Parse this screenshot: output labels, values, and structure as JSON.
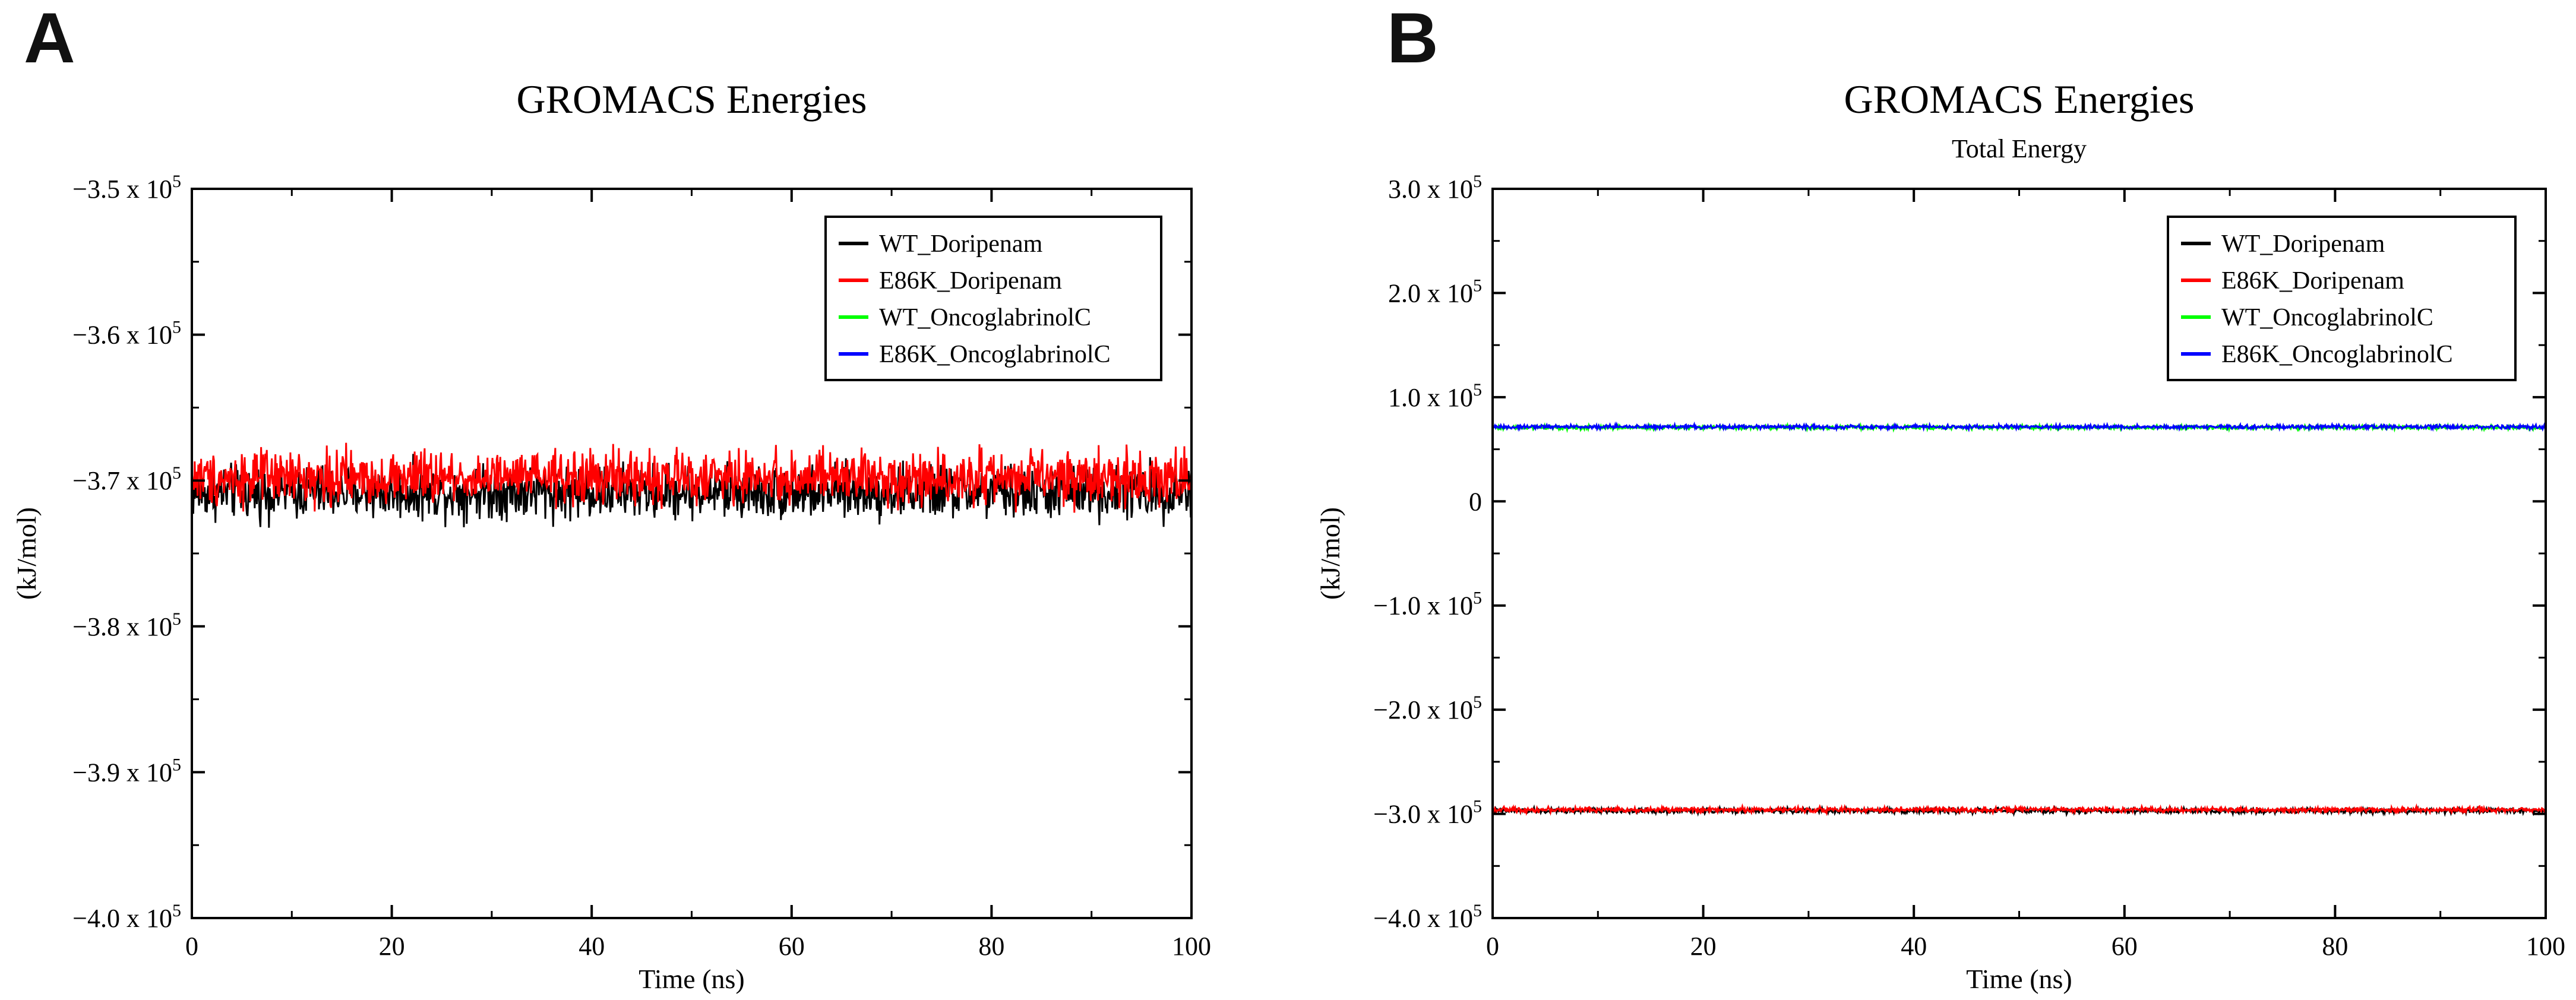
{
  "chart_data": [
    {
      "panel_letter": "A",
      "type": "line",
      "title": "GROMACS Energies",
      "subtitle": "",
      "xlabel": "Time (ns)",
      "ylabel": "(kJ/mol)",
      "xlim": [
        0,
        100
      ],
      "ylim": [
        -400000,
        -350000
      ],
      "xticks": [
        0,
        20,
        40,
        60,
        80,
        100
      ],
      "yticks": [
        {
          "value": -400000,
          "base": "−4.0 x 10",
          "exp": "5"
        },
        {
          "value": -390000,
          "base": "−3.9 x 10",
          "exp": "5"
        },
        {
          "value": -380000,
          "base": "−3.8 x 10",
          "exp": "5"
        },
        {
          "value": -370000,
          "base": "−3.7 x 10",
          "exp": "5"
        },
        {
          "value": -360000,
          "base": "−3.6 x 10",
          "exp": "5"
        },
        {
          "value": -350000,
          "base": "−3.5 x 10",
          "exp": "5"
        }
      ],
      "legend_position": "top-right",
      "grid": false,
      "series": [
        {
          "name": "WT_Doripenam",
          "color": "#000000",
          "mean": -370800,
          "noise": 900,
          "visible": true
        },
        {
          "name": "E86K_Doripenam",
          "color": "#ff0000",
          "mean": -369800,
          "noise": 900,
          "visible": true
        },
        {
          "name": "WT_OncoglabrinolC",
          "color": "#00ff00",
          "mean": null,
          "noise": 0,
          "visible": false
        },
        {
          "name": "E86K_OncoglabrinolC",
          "color": "#0000ff",
          "mean": null,
          "noise": 0,
          "visible": false
        }
      ]
    },
    {
      "panel_letter": "B",
      "type": "line",
      "title": "GROMACS Energies",
      "subtitle": "Total Energy",
      "xlabel": "Time (ns)",
      "ylabel": "(kJ/mol)",
      "xlim": [
        0,
        100
      ],
      "ylim": [
        -400000,
        300000
      ],
      "xticks": [
        0,
        20,
        40,
        60,
        80,
        100
      ],
      "yticks": [
        {
          "value": -400000,
          "base": "−4.0 x 10",
          "exp": "5"
        },
        {
          "value": -300000,
          "base": "−3.0 x 10",
          "exp": "5"
        },
        {
          "value": -200000,
          "base": "−2.0 x 10",
          "exp": "5"
        },
        {
          "value": -100000,
          "base": "−1.0 x 10",
          "exp": "5"
        },
        {
          "value": 0,
          "base": "0",
          "exp": ""
        },
        {
          "value": 100000,
          "base": "1.0 x 10",
          "exp": "5"
        },
        {
          "value": 200000,
          "base": "2.0 x 10",
          "exp": "5"
        },
        {
          "value": 300000,
          "base": "3.0 x 10",
          "exp": "5"
        }
      ],
      "legend_position": "top-right",
      "grid": false,
      "series": [
        {
          "name": "WT_Doripenam",
          "color": "#000000",
          "mean": -297000,
          "noise": 1200,
          "visible": true
        },
        {
          "name": "E86K_Doripenam",
          "color": "#ff0000",
          "mean": -296000,
          "noise": 1200,
          "visible": true
        },
        {
          "name": "WT_OncoglabrinolC",
          "color": "#00ff00",
          "mean": 71000,
          "noise": 900,
          "visible": true
        },
        {
          "name": "E86K_OncoglabrinolC",
          "color": "#0000ff",
          "mean": 71500,
          "noise": 900,
          "visible": true
        }
      ]
    }
  ]
}
